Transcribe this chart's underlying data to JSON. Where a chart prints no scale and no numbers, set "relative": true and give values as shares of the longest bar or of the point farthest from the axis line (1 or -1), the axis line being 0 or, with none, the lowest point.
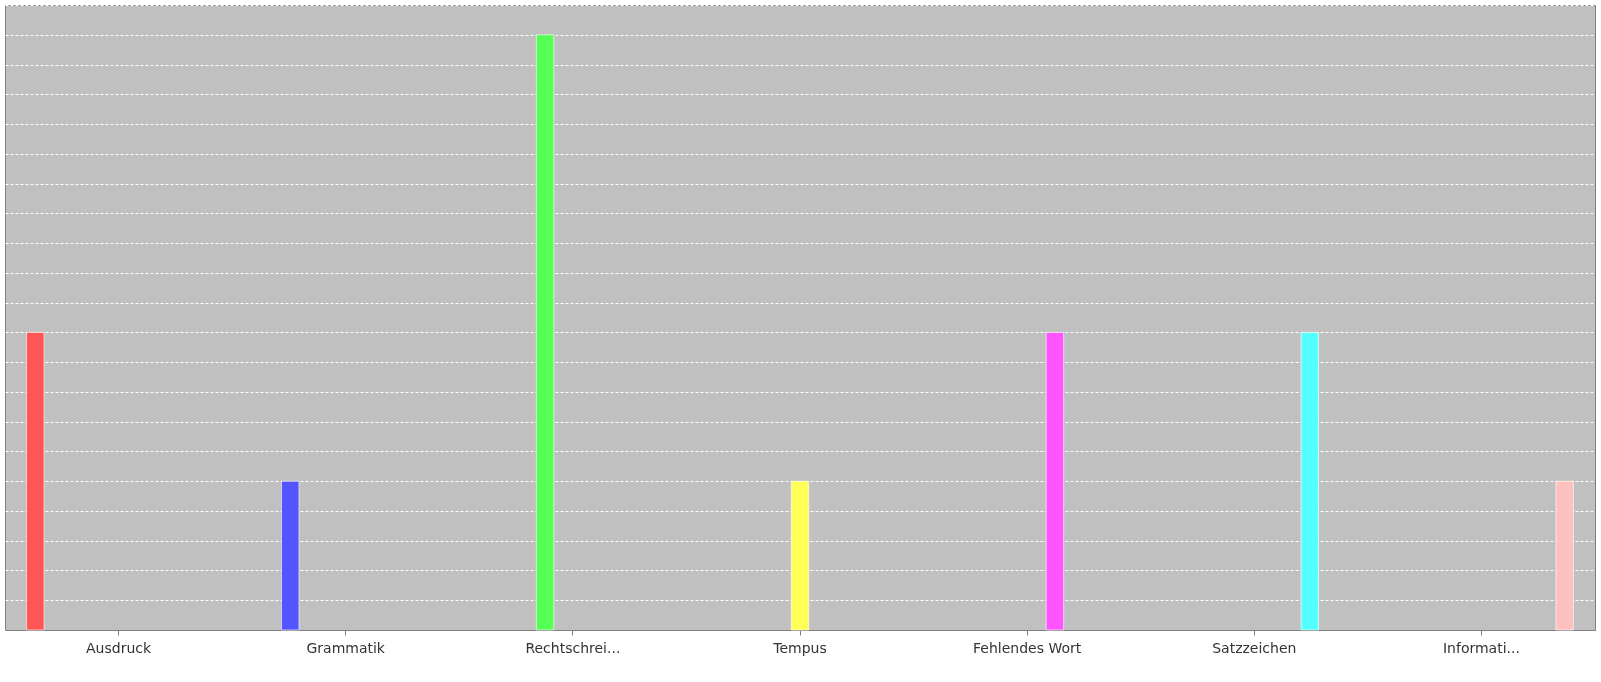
{
  "chart_data": {
    "type": "bar",
    "relative": true,
    "grid": "y",
    "categories": [
      "Ausdruck",
      "Grammatik",
      "Rechtschrei...",
      "Tempus",
      "Fehlendes Wort",
      "Satzzeichen",
      "Informati..."
    ],
    "values": [
      0.5,
      0.25,
      1,
      0.25,
      0.5,
      0.5,
      0.25
    ],
    "colors": [
      "#ff5555",
      "#5555ff",
      "#55ff55",
      "#ffff55",
      "#ff55ff",
      "#55ffff",
      "#ffc0c0"
    ]
  }
}
